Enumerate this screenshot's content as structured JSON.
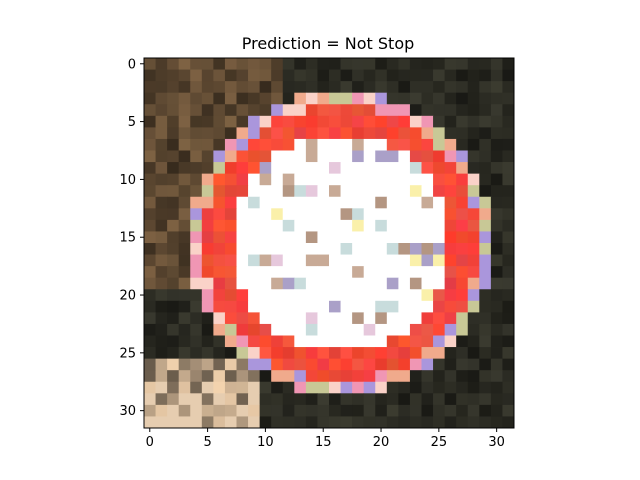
{
  "chart_data": {
    "type": "heatmap",
    "title": "Prediction = Not Stop",
    "xlabel": "",
    "ylabel": "",
    "xlim": [
      -0.5,
      31.5
    ],
    "ylim": [
      31.5,
      -0.5
    ],
    "x_ticks": [
      0,
      5,
      10,
      15,
      20,
      25,
      30
    ],
    "y_ticks": [
      0,
      5,
      10,
      15,
      20,
      25,
      30
    ],
    "grid": false,
    "image": {
      "width": 32,
      "height": 32,
      "description_colors": {
        "background_dark": "#2a2a22",
        "background_brown": "#5a4630",
        "ring_red": "#f24a3a",
        "inner_white": "#ffffff",
        "bottom_left_beige": "#e6cdb0"
      },
      "ring_center": [
        16.5,
        15.5
      ],
      "ring_outer_radius": 12.0,
      "ring_inner_radius": 9.5
    }
  }
}
